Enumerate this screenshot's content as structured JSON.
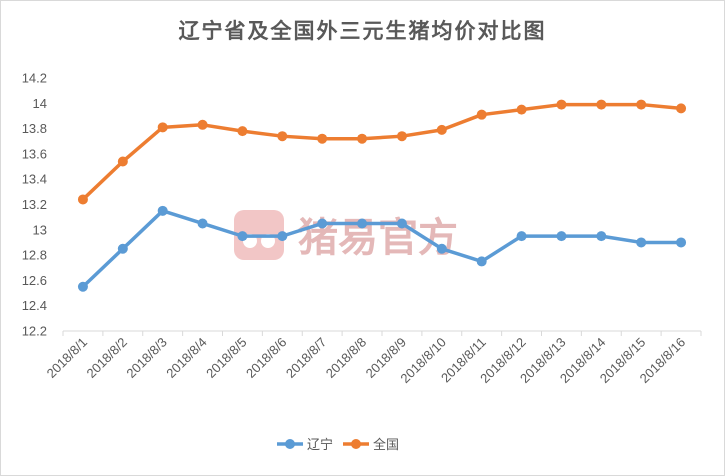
{
  "chart_data": {
    "type": "line",
    "title": "辽宁省及全国外三元生猪均价对比图",
    "categories": [
      "2018/8/1",
      "2018/8/2",
      "2018/8/3",
      "2018/8/4",
      "2018/8/5",
      "2018/8/6",
      "2018/8/7",
      "2018/8/8",
      "2018/8/9",
      "2018/8/10",
      "2018/8/11",
      "2018/8/12",
      "2018/8/13",
      "2018/8/14",
      "2018/8/15",
      "2018/8/16"
    ],
    "series": [
      {
        "name": "辽宁",
        "color": "#5b9bd5",
        "values": [
          12.55,
          12.85,
          13.15,
          13.05,
          12.95,
          12.95,
          13.05,
          13.05,
          13.05,
          12.85,
          12.75,
          12.95,
          12.95,
          12.95,
          12.9,
          12.9
        ]
      },
      {
        "name": "全国",
        "color": "#ed7d31",
        "values": [
          13.24,
          13.54,
          13.81,
          13.83,
          13.78,
          13.74,
          13.72,
          13.72,
          13.74,
          13.79,
          13.91,
          13.95,
          13.99,
          13.99,
          13.99,
          13.96
        ]
      }
    ],
    "ylim": [
      12.2,
      14.2
    ],
    "yticks": [
      "12.2",
      "12.4",
      "12.6",
      "12.8",
      "13",
      "13.2",
      "13.4",
      "13.6",
      "13.8",
      "14",
      "14.2"
    ],
    "grid": false,
    "legend_position": "bottom"
  },
  "watermark": {
    "text": "猪易官方",
    "icon": "pig-snout-logo"
  }
}
